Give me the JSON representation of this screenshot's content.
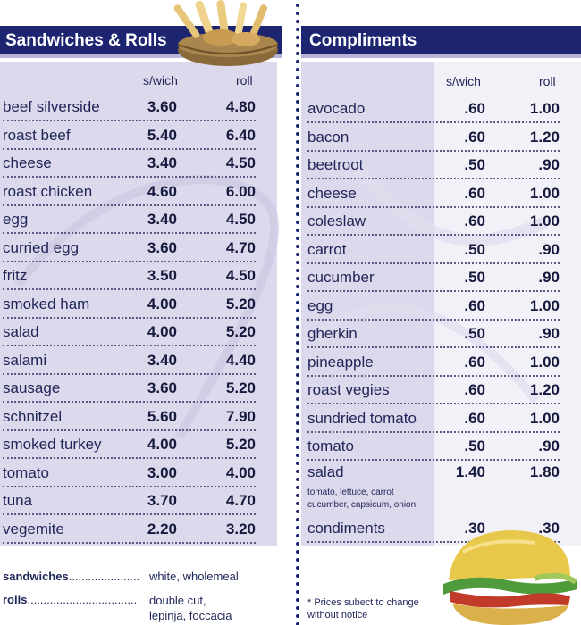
{
  "left": {
    "title": "Sandwiches & Rolls",
    "col1": "s/wich",
    "col2": "roll",
    "items": [
      {
        "name": "beef silverside",
        "swich": "3.60",
        "roll": "4.80"
      },
      {
        "name": "roast beef",
        "swich": "5.40",
        "roll": "6.40"
      },
      {
        "name": "cheese",
        "swich": "3.40",
        "roll": "4.50"
      },
      {
        "name": "roast chicken",
        "swich": "4.60",
        "roll": "6.00"
      },
      {
        "name": "egg",
        "swich": "3.40",
        "roll": "4.50"
      },
      {
        "name": "curried egg",
        "swich": "3.60",
        "roll": "4.70"
      },
      {
        "name": "fritz",
        "swich": "3.50",
        "roll": "4.50"
      },
      {
        "name": "smoked ham",
        "swich": "4.00",
        "roll": "5.20"
      },
      {
        "name": "salad",
        "swich": "4.00",
        "roll": "5.20"
      },
      {
        "name": "salami",
        "swich": "3.40",
        "roll": "4.40"
      },
      {
        "name": "sausage",
        "swich": "3.60",
        "roll": "5.20"
      },
      {
        "name": "schnitzel",
        "swich": "5.60",
        "roll": "7.90"
      },
      {
        "name": "smoked turkey",
        "swich": "4.00",
        "roll": "5.20"
      },
      {
        "name": "tomato",
        "swich": "3.00",
        "roll": "4.00"
      },
      {
        "name": "tuna",
        "swich": "3.70",
        "roll": "4.70"
      },
      {
        "name": "vegemite",
        "swich": "2.20",
        "roll": "3.20"
      }
    ]
  },
  "right": {
    "title": "Compliments",
    "col1": "s/wich",
    "col2": "roll",
    "items": [
      {
        "name": "avocado",
        "swich": ".60",
        "roll": "1.00"
      },
      {
        "name": "bacon",
        "swich": ".60",
        "roll": "1.20"
      },
      {
        "name": "beetroot",
        "swich": ".50",
        "roll": ".90"
      },
      {
        "name": "cheese",
        "swich": ".60",
        "roll": "1.00"
      },
      {
        "name": "coleslaw",
        "swich": ".60",
        "roll": "1.00"
      },
      {
        "name": "carrot",
        "swich": ".50",
        "roll": ".90"
      },
      {
        "name": "cucumber",
        "swich": ".50",
        "roll": ".90"
      },
      {
        "name": "egg",
        "swich": ".60",
        "roll": "1.00"
      },
      {
        "name": "gherkin",
        "swich": ".50",
        "roll": ".90"
      },
      {
        "name": "pineapple",
        "swich": ".60",
        "roll": "1.00"
      },
      {
        "name": "roast vegies",
        "swich": ".60",
        "roll": "1.20"
      },
      {
        "name": "sundried tomato",
        "swich": ".60",
        "roll": "1.00"
      },
      {
        "name": "tomato",
        "swich": ".50",
        "roll": ".90"
      },
      {
        "name": "salad",
        "swich": "1.40",
        "roll": "1.80"
      }
    ],
    "salad_note_line1": "tomato, lettuce, carrot",
    "salad_note_line2": "cucumber, capsicum, onion",
    "condiments": {
      "name": "condiments",
      "swich": ".30",
      "roll": ".30"
    }
  },
  "footer": {
    "sandwiches_label": "sandwiches",
    "sandwiches_dots": "......................",
    "sandwiches_value": "white, wholemeal",
    "rolls_label": "rolls",
    "rolls_dots": "..................................",
    "rolls_value_line1": "double cut,",
    "rolls_value_line2": "lepinja, foccacia",
    "notice_line1": "* Prices subect to change",
    "notice_line2": "without notice"
  },
  "colors": {
    "header_bar": "#1d2470",
    "panel": "#dcd9ec",
    "text": "#1f2557"
  }
}
